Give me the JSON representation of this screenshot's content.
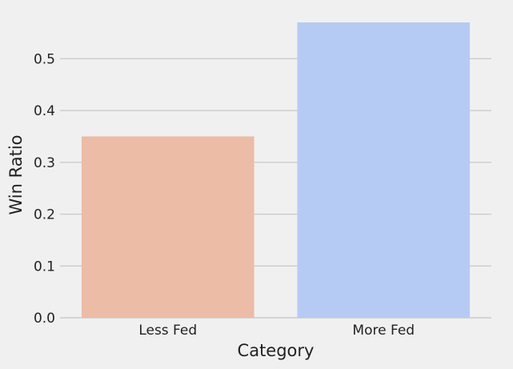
{
  "chart_data": {
    "type": "bar",
    "title": "",
    "xlabel": "Category",
    "ylabel": "Win Ratio",
    "categories": [
      "Less Fed",
      "More Fed"
    ],
    "values": [
      0.35,
      0.57
    ],
    "colors": [
      "#ecbca6",
      "#b6cbf4"
    ],
    "ylim": [
      0,
      0.57
    ],
    "yticks": [
      "0.0",
      "0.1",
      "0.2",
      "0.3",
      "0.4",
      "0.5"
    ],
    "grid": "horizontal",
    "legend": "none"
  },
  "style": {
    "background": "#f0f0f0",
    "grid_color": "#cbcbcb",
    "text_color": "#222222"
  }
}
